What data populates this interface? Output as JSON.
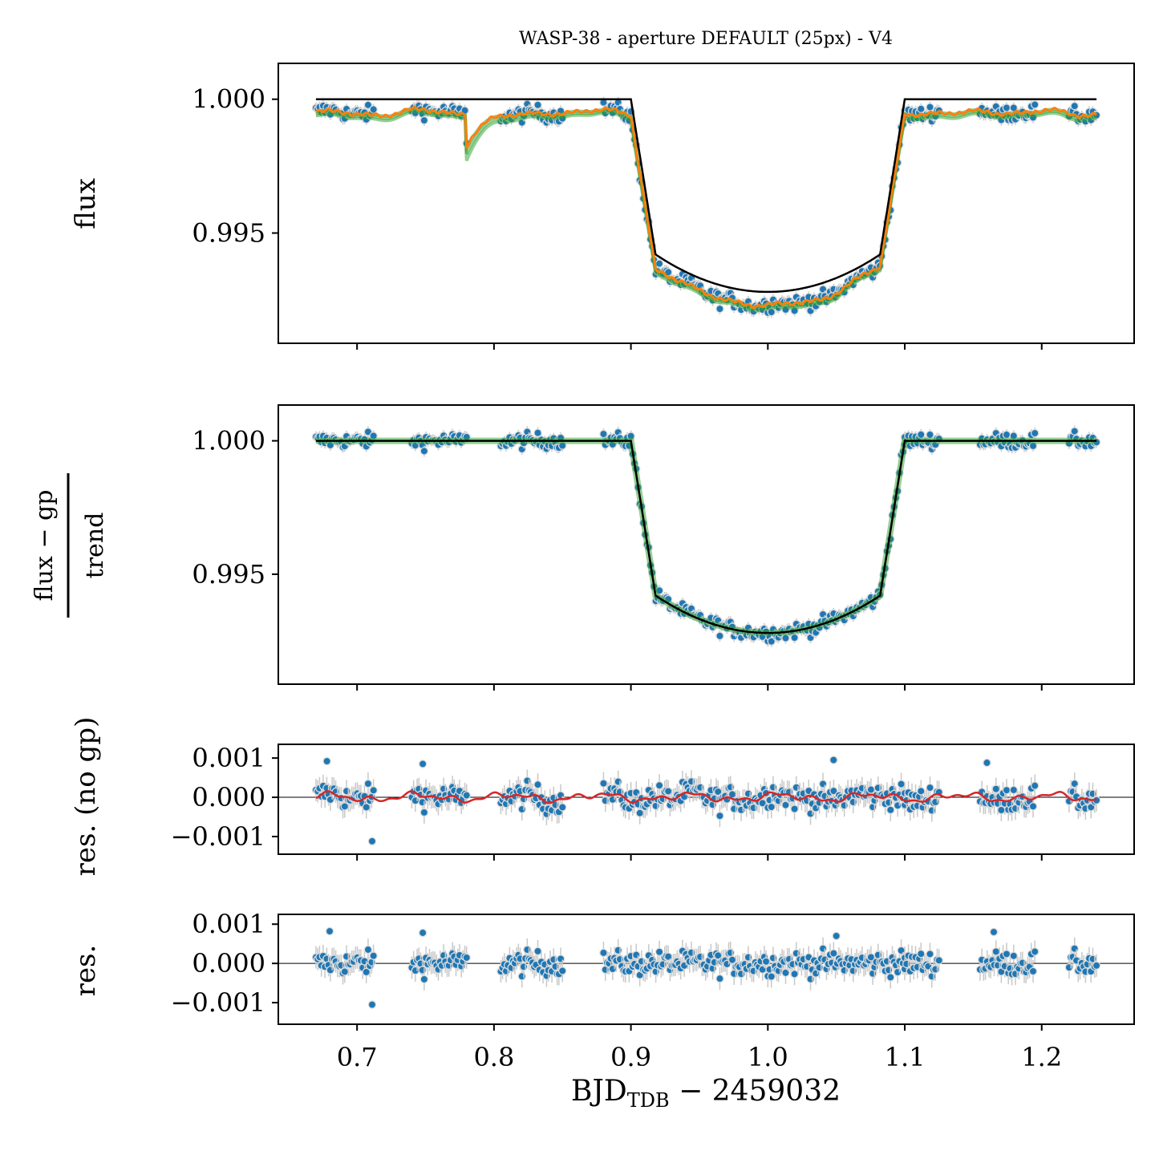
{
  "title": "WASP-38 - aperture DEFAULT (25px) - V4",
  "colors": {
    "data_points": "#1f77b4",
    "errorbars": "#c8c8c8",
    "model_samples": "#2ca02c",
    "gp_model": "#ff7f0e",
    "transit_model": "#000000",
    "gp_residual": "#d62728",
    "zero_line": "#000000"
  },
  "xaxis": {
    "label_main": "BJD",
    "label_sub": "TDB",
    "label_tail": " − 2459032",
    "ticks": [
      "0.7",
      "0.8",
      "0.9",
      "1.0",
      "1.1",
      "1.2"
    ],
    "tick_values": [
      0.7,
      0.8,
      0.9,
      1.0,
      1.1,
      1.2
    ],
    "range": [
      0.6425,
      1.2675
    ]
  },
  "chart_data": [
    {
      "id": "raw",
      "type": "scatter",
      "ylabel": "flux",
      "ylim": [
        0.99088,
        1.00134
      ],
      "yticks": [
        "0.995",
        "1.000"
      ],
      "ytick_values": [
        0.995,
        1.0
      ],
      "transit": {
        "t1": 0.9,
        "t2": 0.918,
        "t3": 1.082,
        "t4": 1.1,
        "depth": 0.0072,
        "limb_curve": 0.0014
      },
      "systematics": {
        "offset": -0.0005,
        "bumps": [
          {
            "t": 0.78,
            "amp": -0.0012,
            "decay": 0.012
          }
        ]
      },
      "series": [
        {
          "name": "data",
          "segments": [
            [
              0.67,
              0.712
            ],
            [
              0.74,
              0.78
            ],
            [
              0.805,
              0.85
            ],
            [
              0.88,
              0.9
            ],
            [
              0.9,
              1.1
            ],
            [
              1.1,
              1.125
            ],
            [
              1.155,
              1.195
            ],
            [
              1.22,
              1.24
            ]
          ]
        },
        {
          "name": "gp+transit model"
        },
        {
          "name": "transit model"
        }
      ]
    },
    {
      "id": "detrended",
      "type": "scatter",
      "ylabel_numerator": "flux − gp",
      "ylabel_denominator": "trend",
      "ylim": [
        0.99088,
        1.00134
      ],
      "yticks": [
        "0.995",
        "1.000"
      ],
      "ytick_values": [
        0.995,
        1.0
      ],
      "series": [
        {
          "name": "data"
        },
        {
          "name": "transit model"
        }
      ]
    },
    {
      "id": "res_no_gp",
      "type": "scatter",
      "ylabel": "res. (no gp)",
      "ylim": [
        -0.00145,
        0.00135
      ],
      "yticks": [
        "−0.001",
        "0.000",
        "0.001"
      ],
      "ytick_values": [
        -0.001,
        0.0,
        0.001
      ],
      "outliers": [
        {
          "x": 0.711,
          "y": -0.00112
        },
        {
          "x": 0.678,
          "y": 0.00092
        },
        {
          "x": 0.748,
          "y": 0.00085
        },
        {
          "x": 1.048,
          "y": 0.00095
        },
        {
          "x": 1.16,
          "y": 0.00088
        }
      ],
      "series": [
        {
          "name": "data"
        },
        {
          "name": "gp residual model"
        }
      ]
    },
    {
      "id": "res",
      "type": "scatter",
      "ylabel": "res.",
      "ylim": [
        -0.00155,
        0.00125
      ],
      "yticks": [
        "−0.001",
        "0.000",
        "0.001"
      ],
      "ytick_values": [
        -0.001,
        0.0,
        0.001
      ],
      "outliers": [
        {
          "x": 0.711,
          "y": -0.00105
        },
        {
          "x": 0.68,
          "y": 0.00082
        },
        {
          "x": 0.748,
          "y": 0.00078
        },
        {
          "x": 1.165,
          "y": 0.0008
        },
        {
          "x": 1.05,
          "y": 0.0007
        }
      ],
      "series": [
        {
          "name": "data"
        }
      ]
    }
  ]
}
